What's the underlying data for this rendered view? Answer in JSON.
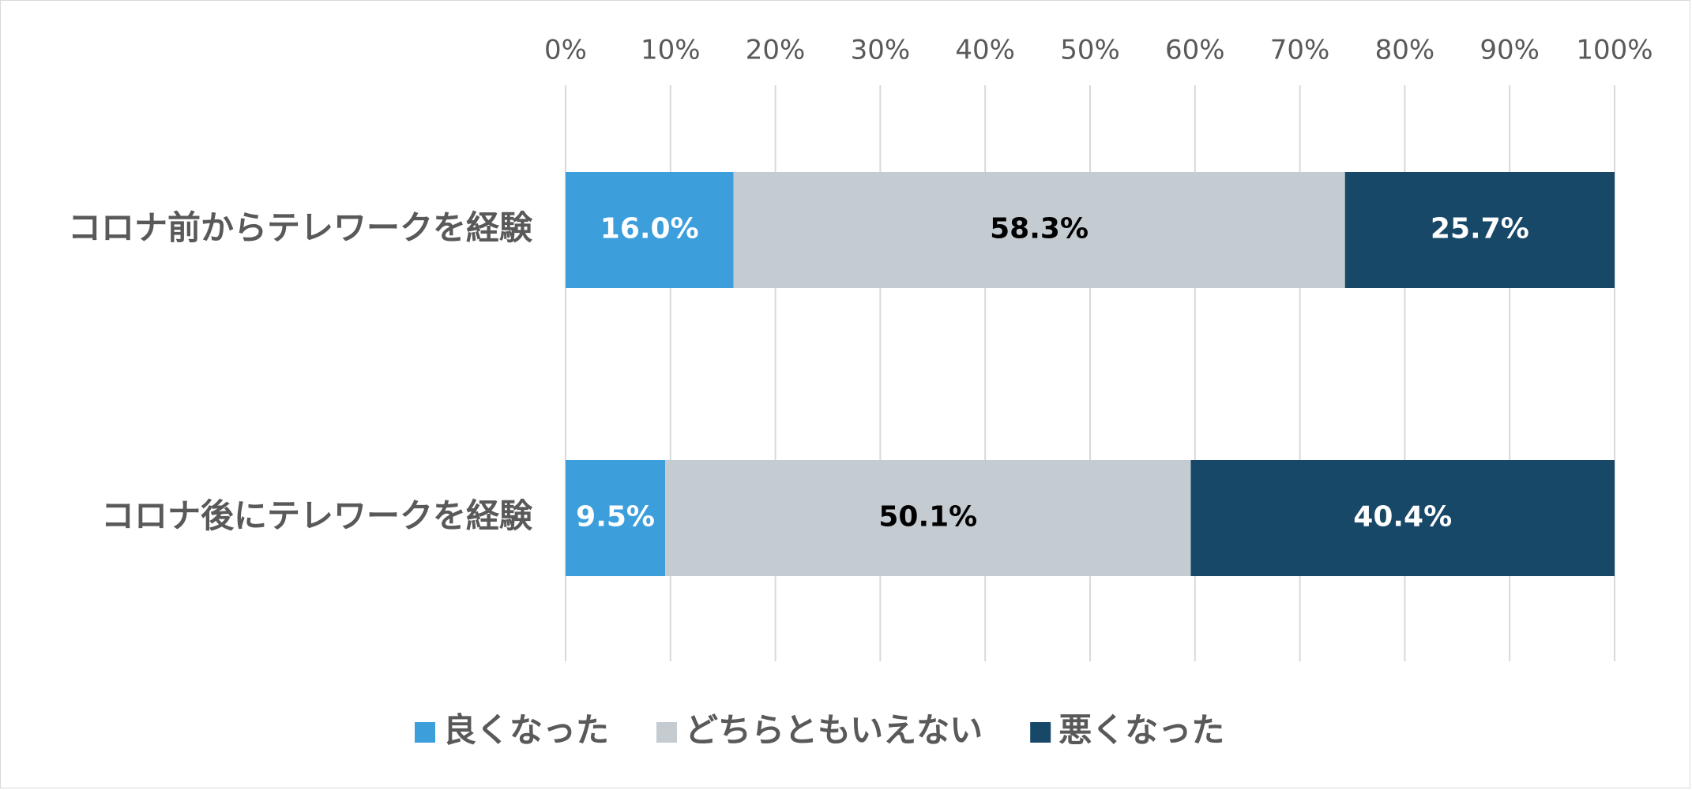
{
  "chart_data": {
    "type": "bar",
    "orientation": "horizontal",
    "stacked": "percent",
    "categories": [
      "コロナ前からテレワークを経験",
      "コロナ後にテレワークを経験"
    ],
    "series": [
      {
        "name": "良くなった",
        "values": [
          16.0,
          9.5
        ],
        "labels": [
          "16.0%",
          "9.5%"
        ],
        "color": "#3c9fdc",
        "label_color": "#ffffff"
      },
      {
        "name": "どちらともいえない",
        "values": [
          58.3,
          50.1
        ],
        "labels": [
          "58.3%",
          "50.1%"
        ],
        "color": "#c4cbd1",
        "label_color": "#000000"
      },
      {
        "name": "悪くなった",
        "values": [
          25.7,
          40.4
        ],
        "labels": [
          "25.7%",
          "40.4%"
        ],
        "color": "#174868",
        "label_color": "#ffffff"
      }
    ],
    "x_ticks": [
      "0%",
      "10%",
      "20%",
      "30%",
      "40%",
      "50%",
      "60%",
      "70%",
      "80%",
      "90%",
      "100%"
    ],
    "xlim": [
      0,
      100
    ],
    "x_axis_position": "top",
    "grid": true,
    "legend_position": "bottom",
    "gridline_color": "#d9d9d9",
    "text_color": "#595959"
  }
}
